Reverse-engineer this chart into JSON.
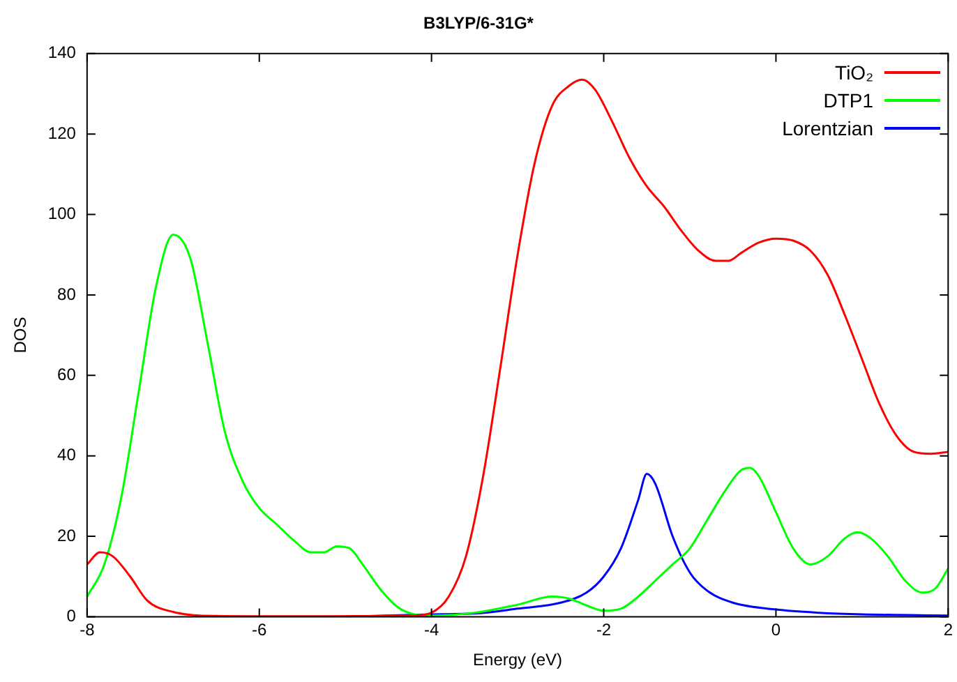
{
  "chart_data": {
    "type": "line",
    "title": "B3LYP/6-31G*",
    "xlabel": "Energy (eV)",
    "ylabel": "DOS",
    "xlim": [
      -8,
      2
    ],
    "xticks": [
      -8,
      -6,
      -4,
      -2,
      0,
      2
    ],
    "ylim": [
      0,
      140
    ],
    "yticks": [
      0,
      20,
      40,
      60,
      80,
      100,
      120,
      140
    ],
    "legend": "top right",
    "grid": false,
    "marker": "none",
    "line_style": "solid",
    "series": [
      {
        "name": "TiO₂",
        "color": "#ff0000",
        "x": [
          -8,
          -7.85,
          -7.7,
          -7.5,
          -7.3,
          -7,
          -6.5,
          -5.6,
          -4.2,
          -4,
          -3.8,
          -3.6,
          -3.4,
          -3.2,
          -3,
          -2.8,
          -2.6,
          -2.4,
          -2.25,
          -2.1,
          -1.9,
          -1.7,
          -1.5,
          -1.3,
          -1.1,
          -0.9,
          -0.7,
          -0.55,
          -0.4,
          -0.2,
          0,
          0.2,
          0.4,
          0.6,
          0.8,
          1,
          1.2,
          1.4,
          1.6,
          1.8,
          2
        ],
        "values": [
          13,
          16,
          15,
          10,
          4,
          1.2,
          0.2,
          0.1,
          0.3,
          1,
          5,
          15,
          35,
          62,
          90,
          113,
          127,
          132,
          133.5,
          131,
          123,
          114,
          107,
          102,
          96,
          91,
          88.5,
          88.5,
          90.5,
          93,
          94,
          93.5,
          91,
          85,
          75,
          64,
          53,
          45,
          41,
          40.5,
          41
        ]
      },
      {
        "name": "DTP1",
        "color": "#00ff00",
        "x": [
          -8,
          -7.8,
          -7.6,
          -7.4,
          -7.2,
          -7,
          -6.8,
          -6.6,
          -6.4,
          -6.2,
          -6,
          -5.8,
          -5.6,
          -5.4,
          -5.25,
          -5.1,
          -4.95,
          -4.8,
          -4.6,
          -4.4,
          -4.2,
          -4,
          -3.5,
          -3,
          -2.6,
          -2.4,
          -2.2,
          -2,
          -1.8,
          -1.6,
          -1.4,
          -1.2,
          -1,
          -0.8,
          -0.6,
          -0.4,
          -0.3,
          -0.2,
          0,
          0.2,
          0.4,
          0.6,
          0.8,
          0.95,
          1.1,
          1.3,
          1.5,
          1.7,
          1.85,
          2
        ],
        "values": [
          5,
          13,
          30,
          56,
          82,
          95,
          89,
          68,
          46,
          34,
          27,
          23,
          19,
          16,
          16,
          17.5,
          17,
          13,
          7,
          2.5,
          0.6,
          0.3,
          1,
          3,
          5,
          4.5,
          2.8,
          1.5,
          2,
          5,
          9,
          13,
          17,
          24,
          31,
          36.5,
          37,
          35,
          26,
          17,
          13,
          15,
          19.5,
          21,
          19.5,
          15,
          9,
          6,
          7,
          12
        ]
      },
      {
        "name": "Lorentzian",
        "color": "#0000ff",
        "x": [
          -5,
          -4,
          -3.5,
          -3,
          -2.5,
          -2.2,
          -2,
          -1.8,
          -1.6,
          -1.5,
          -1.4,
          -1.2,
          -1,
          -0.8,
          -0.5,
          0,
          0.5,
          1,
          2
        ],
        "values": [
          0,
          0.6,
          0.8,
          2,
          3.5,
          6,
          10,
          17,
          29,
          35.5,
          33,
          20,
          11,
          6.5,
          3.5,
          1.8,
          1,
          0.6,
          0.3
        ]
      }
    ]
  }
}
